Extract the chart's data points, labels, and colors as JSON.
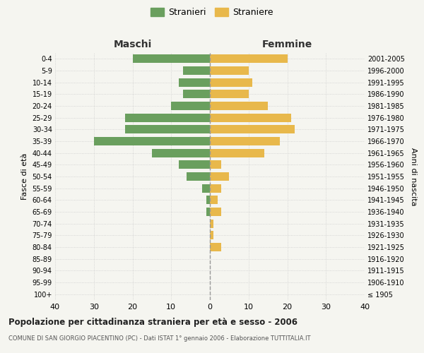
{
  "age_groups": [
    "100+",
    "95-99",
    "90-94",
    "85-89",
    "80-84",
    "75-79",
    "70-74",
    "65-69",
    "60-64",
    "55-59",
    "50-54",
    "45-49",
    "40-44",
    "35-39",
    "30-34",
    "25-29",
    "20-24",
    "15-19",
    "10-14",
    "5-9",
    "0-4"
  ],
  "birth_years": [
    "≤ 1905",
    "1906-1910",
    "1911-1915",
    "1916-1920",
    "1921-1925",
    "1926-1930",
    "1931-1935",
    "1936-1940",
    "1941-1945",
    "1946-1950",
    "1951-1955",
    "1956-1960",
    "1961-1965",
    "1966-1970",
    "1971-1975",
    "1976-1980",
    "1981-1985",
    "1986-1990",
    "1991-1995",
    "1996-2000",
    "2001-2005"
  ],
  "maschi": [
    0,
    0,
    0,
    0,
    0,
    0,
    0,
    1,
    1,
    2,
    6,
    8,
    15,
    30,
    22,
    22,
    10,
    7,
    8,
    7,
    20
  ],
  "femmine": [
    0,
    0,
    0,
    0,
    3,
    1,
    1,
    3,
    2,
    3,
    5,
    3,
    14,
    18,
    22,
    21,
    15,
    10,
    11,
    10,
    20
  ],
  "maschi_color": "#6a9f5e",
  "femmine_color": "#e8b84b",
  "background_color": "#f5f5f0",
  "grid_color": "#cccccc",
  "dashed_line_color": "#999999",
  "title": "Popolazione per cittadinanza straniera per età e sesso - 2006",
  "subtitle": "COMUNE DI SAN GIORGIO PIACENTINO (PC) - Dati ISTAT 1° gennaio 2006 - Elaborazione TUTTITALIA.IT",
  "label_maschi": "Maschi",
  "label_femmine": "Femmine",
  "ylabel_left": "Fasce di età",
  "ylabel_right": "Anni di nascita",
  "legend_maschi": "Stranieri",
  "legend_femmine": "Straniere",
  "xlim": 40,
  "bar_height": 0.72
}
